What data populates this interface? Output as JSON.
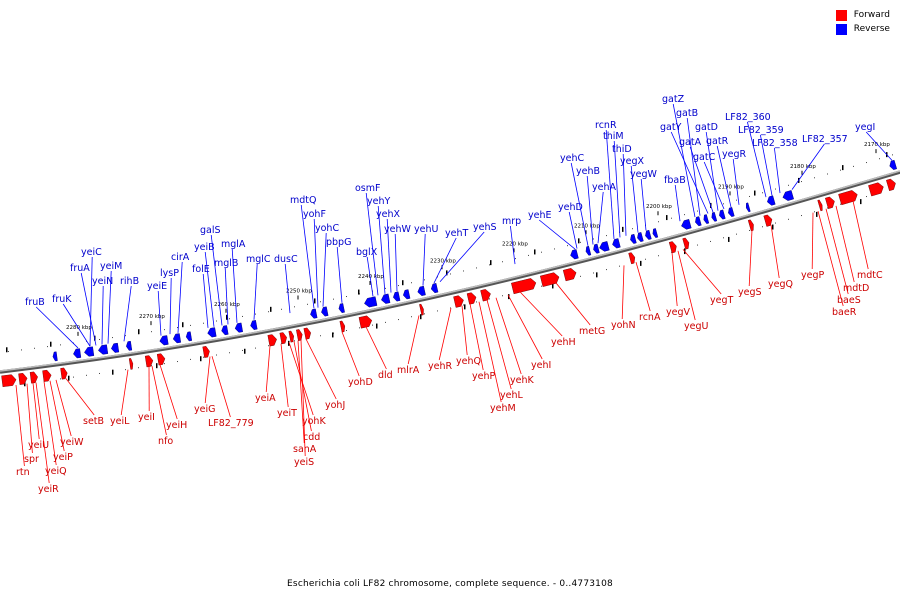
{
  "caption": "Escherichia coli LF82 chromosome, complete sequence. - 0..4773108",
  "legend": [
    {
      "label": "Forward",
      "color": "#ff0000"
    },
    {
      "label": "Reverse",
      "color": "#0000ff"
    }
  ],
  "colors": {
    "forward": "#ff0000",
    "reverse": "#0000ff",
    "forward_label": "#cc0000",
    "reverse_label": "#0000cc",
    "backbone": "#888888"
  },
  "scale_ticks": [
    "2170 kbp",
    "2180 kbp",
    "2190 kbp",
    "2200 kbp",
    "2210 kbp",
    "2220 kbp",
    "2230 kbp",
    "2240 kbp",
    "2250 kbp",
    "2260 kbp",
    "2270 kbp",
    "2280 kbp"
  ],
  "reverse_genes": [
    "fruB",
    "fruK",
    "yeiC",
    "fruA",
    "yeiN",
    "yeiM",
    "rihB",
    "yeiE",
    "lysP",
    "cirA",
    "folE",
    "yeiB",
    "galS",
    "mglB",
    "mglA",
    "mglC",
    "dusC",
    "mdtQ",
    "yohF",
    "yohC",
    "pbpG",
    "bglX",
    "osmF",
    "yehY",
    "yehX",
    "yehW",
    "yehU",
    "yehT",
    "yehS",
    "mrp",
    "yehE",
    "yehD",
    "yehC",
    "yehB",
    "yehA",
    "rcnR",
    "thiM",
    "thiD",
    "yegX",
    "yegW",
    "fbaB",
    "gatZ",
    "gatB",
    "gatY",
    "gatA",
    "gatD",
    "gatC",
    "gatR",
    "yegR",
    "LF82_360",
    "LF82_359",
    "LF82_358",
    "LF82_357",
    "yegI"
  ],
  "forward_genes": [
    "rtn",
    "spr",
    "yeiU",
    "yeiR",
    "yeiQ",
    "yeiP",
    "yeiW",
    "setB",
    "yeiL",
    "yeiI",
    "nfo",
    "yeiH",
    "yeiG",
    "LF82_779",
    "yeiA",
    "yeiT",
    "yohK",
    "cdd",
    "sanA",
    "yeiS",
    "yohJ",
    "yohD",
    "dld",
    "mlrA",
    "yehR",
    "yehQ",
    "yehP",
    "yehM",
    "yehL",
    "yehK",
    "yehI",
    "yehH",
    "metG",
    "yohN",
    "rcnA",
    "yegV",
    "yegU",
    "yegT",
    "yegS",
    "yegQ",
    "yegP",
    "baeR",
    "baeS",
    "mdtD",
    "mdtC"
  ]
}
